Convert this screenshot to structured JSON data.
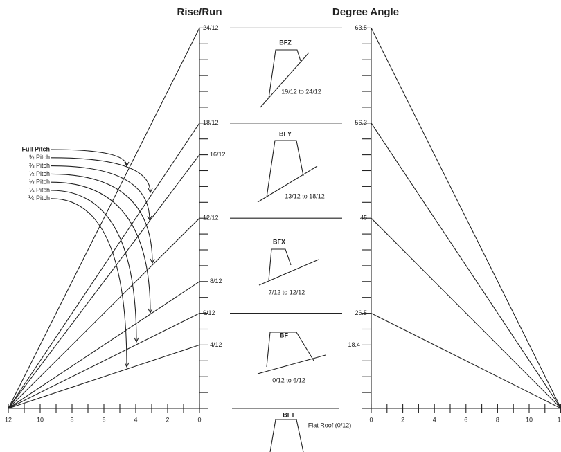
{
  "titles": {
    "rise_run": "Rise/Run",
    "degree_angle": "Degree Angle"
  },
  "rise_labels": [
    "24/12",
    "18/12",
    "16/12",
    "12/12",
    "8/12",
    "6/12",
    "4/12"
  ],
  "degree_labels": [
    "63.5",
    "56.3",
    "45",
    "26.5",
    "18.4"
  ],
  "pitch_labels": [
    "Full Pitch",
    "¾ Pitch",
    "⅔ Pitch",
    "½ Pitch",
    "⅓ Pitch",
    "¼ Pitch",
    "⅙ Pitch"
  ],
  "left_axis": [
    "12",
    "10",
    "8",
    "6",
    "4",
    "2",
    "0"
  ],
  "right_axis": [
    "0",
    "2",
    "4",
    "6",
    "8",
    "10",
    "1"
  ],
  "profiles": [
    {
      "code": "BFZ",
      "range": "19/12 to 24/12"
    },
    {
      "code": "BFY",
      "range": "13/12 to 18/12"
    },
    {
      "code": "BFX",
      "range": "7/12 to 12/12"
    },
    {
      "code": "BF",
      "range": "0/12 to 6/12"
    },
    {
      "code": "BFT",
      "range": "Flat Roof (0/12)"
    }
  ]
}
